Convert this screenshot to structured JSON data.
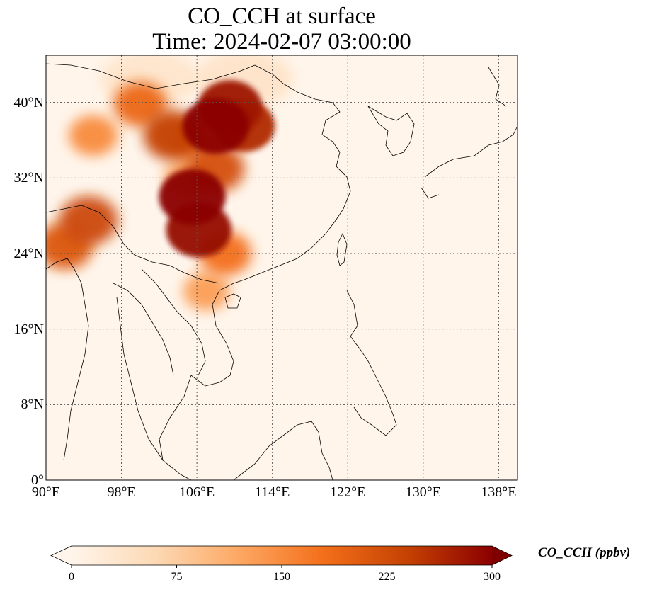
{
  "title_line1": "CO_CCH at surface",
  "title_line2": "Time: 2024-02-07 03:00:00",
  "map": {
    "lon_range": [
      90,
      140
    ],
    "lat_range": [
      0,
      45
    ],
    "gridlines": true,
    "x_ticks": [
      {
        "value": 90,
        "label": "90°E"
      },
      {
        "value": 98,
        "label": "98°E"
      },
      {
        "value": 106,
        "label": "106°E"
      },
      {
        "value": 114,
        "label": "114°E"
      },
      {
        "value": 122,
        "label": "122°E"
      },
      {
        "value": 130,
        "label": "130°E"
      },
      {
        "value": 138,
        "label": "138°E"
      }
    ],
    "y_ticks": [
      {
        "value": 0,
        "label": "0°"
      },
      {
        "value": 8,
        "label": "8°N"
      },
      {
        "value": 16,
        "label": "16°N"
      },
      {
        "value": 24,
        "label": "24°N"
      },
      {
        "value": 32,
        "label": "32°N"
      },
      {
        "value": 40,
        "label": "40°N"
      }
    ],
    "background_color": "#fff5eb",
    "plume_regions": [
      {
        "lon": 108.0,
        "lat": 37.5,
        "value": 300
      },
      {
        "lon": 105.5,
        "lat": 30.0,
        "value": 300
      },
      {
        "lon": 106.2,
        "lat": 26.5,
        "value": 290
      },
      {
        "lon": 109.5,
        "lat": 39.5,
        "value": 280
      },
      {
        "lon": 111.0,
        "lat": 37.5,
        "value": 260
      },
      {
        "lon": 103.5,
        "lat": 36.5,
        "value": 240
      },
      {
        "lon": 108.0,
        "lat": 33.0,
        "value": 220
      },
      {
        "lon": 94.5,
        "lat": 27.5,
        "value": 230
      },
      {
        "lon": 92.0,
        "lat": 24.8,
        "value": 210
      },
      {
        "lon": 109.0,
        "lat": 24.0,
        "value": 180
      },
      {
        "lon": 107.0,
        "lat": 20.0,
        "value": 130
      },
      {
        "lon": 100.0,
        "lat": 39.8,
        "value": 190
      },
      {
        "lon": 95.0,
        "lat": 36.5,
        "value": 150
      },
      {
        "lon": 106.0,
        "lat": 36.0,
        "value": 140
      },
      {
        "lon": 105.0,
        "lat": 32.0,
        "value": 130
      },
      {
        "lon": 101.0,
        "lat": 42.5,
        "value": 40
      },
      {
        "lon": 111.0,
        "lat": 42.5,
        "value": 45
      }
    ]
  },
  "colorbar": {
    "label": "CO_CCH (ppbv)",
    "min": 0,
    "max": 300,
    "extend": "both",
    "colormap": "Oranges",
    "ticks": [
      {
        "value": 0,
        "label": "0"
      },
      {
        "value": 75,
        "label": "75"
      },
      {
        "value": 150,
        "label": "150"
      },
      {
        "value": 225,
        "label": "225"
      },
      {
        "value": 300,
        "label": "300"
      }
    ],
    "colors": [
      "#fff5eb",
      "#fdd9b4",
      "#fda762",
      "#f36f1a",
      "#c44103",
      "#8b0000",
      "#7f0000"
    ]
  }
}
